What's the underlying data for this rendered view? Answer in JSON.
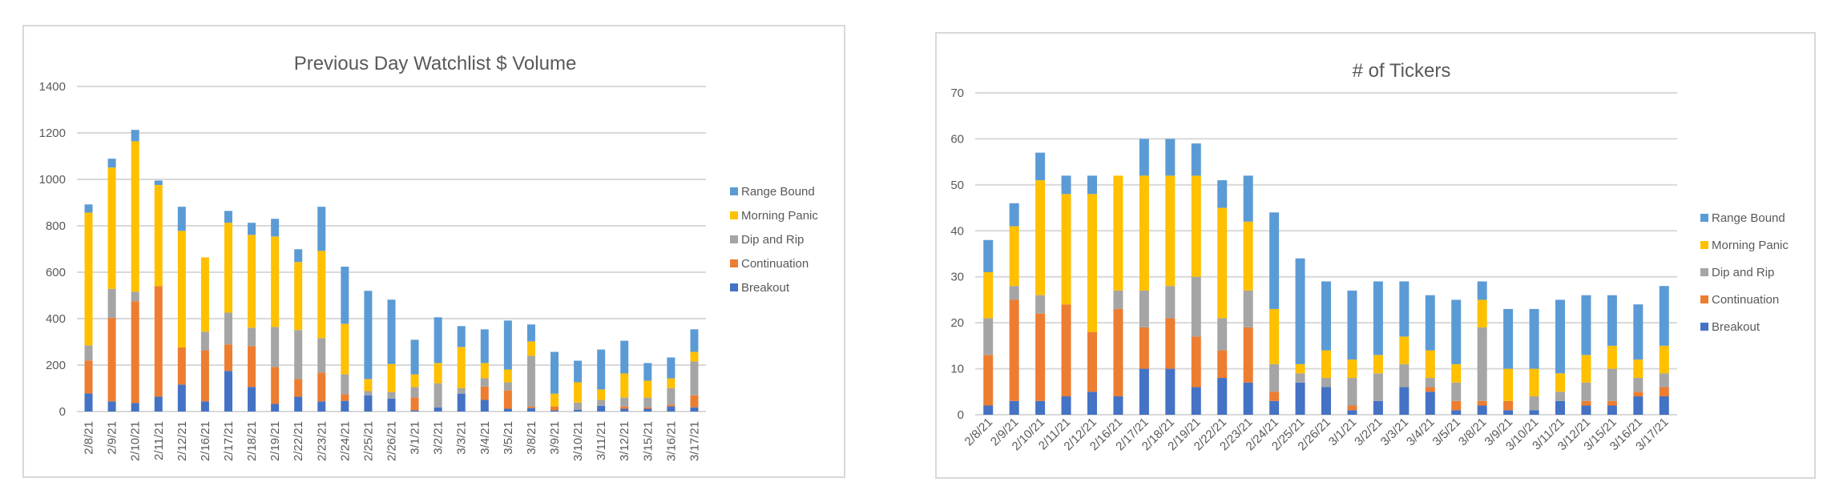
{
  "chart_data": [
    {
      "id": "left",
      "type": "bar",
      "stacked": true,
      "title": "Previous Day Watchlist $ Volume",
      "xlabel": "",
      "ylabel": "",
      "ylim": [
        0,
        1400
      ],
      "yticks": [
        0,
        200,
        400,
        600,
        800,
        1000,
        1200,
        1400
      ],
      "grid": true,
      "legend_position": "right",
      "x_label_rotation": "vertical",
      "categories": [
        "2/8/21",
        "2/9/21",
        "2/10/21",
        "2/11/21",
        "2/12/21",
        "2/16/21",
        "2/17/21",
        "2/18/21",
        "2/19/21",
        "2/22/21",
        "2/23/21",
        "2/24/21",
        "2/25/21",
        "2/26/21",
        "3/1/21",
        "3/2/21",
        "3/3/21",
        "3/4/21",
        "3/5/21",
        "3/8/21",
        "3/9/21",
        "3/10/21",
        "3/11/21",
        "3/12/21",
        "3/15/21",
        "3/16/21",
        "3/17/21"
      ],
      "series": [
        {
          "name": "Breakout",
          "color": "#4472C4",
          "values": [
            78,
            44,
            37,
            64,
            116,
            44,
            175,
            106,
            33,
            64,
            44,
            46,
            70,
            56,
            5,
            18,
            77,
            50,
            12,
            15,
            5,
            8,
            25,
            12,
            12,
            22,
            18
          ]
        },
        {
          "name": "Continuation",
          "color": "#ED7D31",
          "values": [
            142,
            359,
            438,
            476,
            160,
            220,
            114,
            176,
            159,
            76,
            124,
            28,
            0,
            0,
            55,
            0,
            0,
            58,
            79,
            7,
            17,
            0,
            0,
            10,
            6,
            7,
            52
          ]
        },
        {
          "name": "Dip and Rip",
          "color": "#A5A5A5",
          "values": [
            65,
            125,
            41,
            0,
            0,
            80,
            137,
            79,
            172,
            211,
            148,
            86,
            18,
            28,
            45,
            104,
            24,
            35,
            35,
            218,
            0,
            31,
            25,
            38,
            42,
            72,
            146
          ]
        },
        {
          "name": "Morning Panic",
          "color": "#FFC000",
          "values": [
            572,
            523,
            648,
            436,
            502,
            320,
            387,
            400,
            390,
            293,
            376,
            218,
            52,
            121,
            55,
            87,
            177,
            66,
            55,
            62,
            55,
            87,
            45,
            104,
            73,
            42,
            41
          ]
        },
        {
          "name": "Range Bound",
          "color": "#5B9BD5",
          "values": [
            35,
            38,
            49,
            19,
            104,
            0,
            51,
            52,
            76,
            55,
            190,
            246,
            380,
            277,
            149,
            197,
            90,
            145,
            211,
            73,
            180,
            93,
            172,
            141,
            76,
            90,
            97
          ]
        }
      ],
      "legend_order": [
        "Range Bound",
        "Morning Panic",
        "Dip and Rip",
        "Continuation",
        "Breakout"
      ]
    },
    {
      "id": "right",
      "type": "bar",
      "stacked": true,
      "title": "# of Tickers",
      "xlabel": "",
      "ylabel": "",
      "ylim": [
        0,
        70
      ],
      "yticks": [
        0,
        10,
        20,
        30,
        40,
        50,
        60,
        70
      ],
      "grid": true,
      "legend_position": "right",
      "x_label_rotation": "diagonal",
      "categories": [
        "2/8/21",
        "2/9/21",
        "2/10/21",
        "2/11/21",
        "2/12/21",
        "2/16/21",
        "2/17/21",
        "2/18/21",
        "2/19/21",
        "2/22/21",
        "2/23/21",
        "2/24/21",
        "2/25/21",
        "2/26/21",
        "3/1/21",
        "3/2/21",
        "3/3/21",
        "3/4/21",
        "3/5/21",
        "3/8/21",
        "3/9/21",
        "3/10/21",
        "3/11/21",
        "3/12/21",
        "3/15/21",
        "3/16/21",
        "3/17/21"
      ],
      "series": [
        {
          "name": "Breakout",
          "color": "#4472C4",
          "values": [
            2,
            3,
            3,
            4,
            5,
            4,
            10,
            10,
            6,
            8,
            7,
            3,
            7,
            6,
            1,
            3,
            6,
            5,
            1,
            2,
            1,
            1,
            3,
            2,
            2,
            4,
            4
          ]
        },
        {
          "name": "Continuation",
          "color": "#ED7D31",
          "values": [
            11,
            22,
            19,
            20,
            13,
            19,
            9,
            11,
            11,
            6,
            12,
            2,
            0,
            0,
            1,
            0,
            0,
            1,
            2,
            1,
            2,
            0,
            0,
            1,
            1,
            1,
            2
          ]
        },
        {
          "name": "Dip and Rip",
          "color": "#A5A5A5",
          "values": [
            8,
            3,
            4,
            0,
            0,
            4,
            8,
            7,
            13,
            7,
            8,
            6,
            2,
            2,
            6,
            6,
            5,
            2,
            4,
            16,
            0,
            3,
            2,
            4,
            7,
            3,
            3
          ]
        },
        {
          "name": "Morning Panic",
          "color": "#FFC000",
          "values": [
            10,
            13,
            25,
            24,
            30,
            25,
            25,
            24,
            22,
            24,
            15,
            12,
            2,
            6,
            4,
            4,
            6,
            6,
            4,
            6,
            7,
            6,
            4,
            6,
            5,
            4,
            6
          ]
        },
        {
          "name": "Range Bound",
          "color": "#5B9BD5",
          "values": [
            7,
            5,
            6,
            4,
            4,
            0,
            8,
            8,
            7,
            6,
            10,
            21,
            23,
            15,
            15,
            16,
            12,
            12,
            14,
            4,
            13,
            13,
            16,
            13,
            11,
            12,
            13
          ]
        }
      ],
      "legend_order": [
        "Range Bound",
        "Morning Panic",
        "Dip and Rip",
        "Continuation",
        "Breakout"
      ]
    }
  ]
}
